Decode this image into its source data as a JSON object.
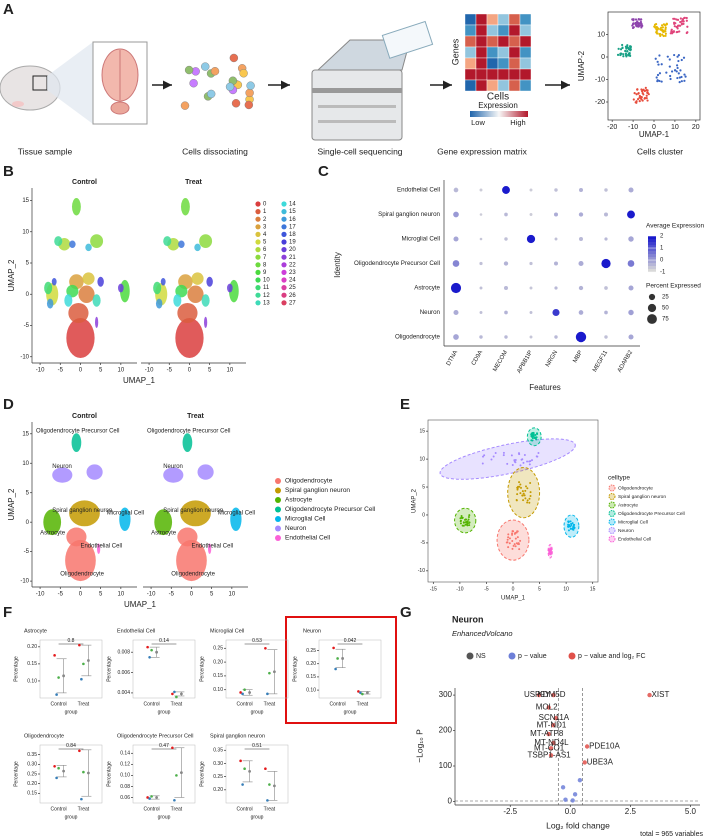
{
  "panel_labels": [
    "A",
    "B",
    "C",
    "D",
    "E",
    "F",
    "G"
  ],
  "a": {
    "steps": [
      "Tissue sample",
      "Cells dissociating",
      "Single-cell sequencing",
      "Gene expression matrix",
      "Cells cluster"
    ],
    "matrix_y": "Genes",
    "matrix_x": "Cells",
    "expression": "Expression",
    "low": "Low",
    "high": "High",
    "umap_x": "UMAP-1",
    "umap_y": "UMAP-2",
    "xlim": [
      -22,
      22
    ],
    "ylim": [
      -28,
      20
    ],
    "xticks": [
      -20,
      -10,
      0,
      10,
      20
    ],
    "yticks": [
      10,
      0,
      -10,
      -20
    ]
  },
  "b": {
    "facets": [
      "Control",
      "Treat"
    ],
    "x_label": "UMAP_1",
    "y_label": "UMAP_2",
    "xlim": [
      -12,
      14
    ],
    "ylim": [
      -11,
      17
    ],
    "xticks": [
      -10,
      -5,
      0,
      5,
      10
    ],
    "yticks": [
      -10,
      -5,
      0,
      5,
      10,
      15
    ],
    "clusters": [
      0,
      1,
      2,
      3,
      4,
      5,
      6,
      7,
      8,
      9,
      10,
      11,
      12,
      13,
      14,
      15,
      16,
      17,
      18,
      19,
      20,
      21,
      22,
      23,
      24,
      25,
      26,
      27
    ]
  },
  "c": {
    "features": [
      "DTNA",
      "CD9A",
      "MECOM",
      "APBB1IP",
      "NRGN",
      "MBP",
      "MEGF11",
      "ADARB2"
    ],
    "x_label": "Features",
    "y_label": "Identity",
    "identities": [
      "Endothelial Cell",
      "Spiral ganglion neuron",
      "Microglial Cell",
      "Oligodendrocyte Precursor Cell",
      "Astrocyte",
      "Neuron",
      "Oligodendrocyte"
    ],
    "avg_expression": [
      [
        -0.5,
        -0.8,
        2,
        -0.8,
        -0.6,
        -0.4,
        -0.6,
        -0.3
      ],
      [
        0,
        -0.8,
        -0.5,
        -0.8,
        -0.3,
        -0.3,
        -0.5,
        2
      ],
      [
        -0.2,
        -0.7,
        -0.6,
        2,
        -0.6,
        -0.5,
        -0.5,
        -0.2
      ],
      [
        0.3,
        -0.6,
        -0.4,
        -0.6,
        -0.4,
        -0.3,
        2,
        0.5
      ],
      [
        2,
        -0.6,
        -0.5,
        -0.7,
        -0.5,
        -0.4,
        -0.6,
        -0.2
      ],
      [
        -0.3,
        -0.6,
        -0.4,
        -0.6,
        1.5,
        -0.3,
        -0.4,
        -0.1
      ],
      [
        -0.2,
        -0.5,
        -0.5,
        -0.7,
        -0.5,
        2,
        -0.6,
        -0.2
      ]
    ],
    "pct_expressed": [
      [
        12,
        3,
        45,
        3,
        5,
        8,
        5,
        15
      ],
      [
        20,
        2,
        6,
        3,
        8,
        10,
        8,
        45
      ],
      [
        15,
        2,
        5,
        50,
        3,
        8,
        4,
        18
      ],
      [
        30,
        4,
        10,
        4,
        8,
        15,
        65,
        30
      ],
      [
        80,
        3,
        8,
        3,
        4,
        10,
        6,
        15
      ],
      [
        15,
        3,
        6,
        3,
        35,
        12,
        6,
        18
      ],
      [
        20,
        5,
        5,
        3,
        5,
        85,
        5,
        15
      ]
    ],
    "color_low": "#d9d9d9",
    "color_high": "#1a1acc",
    "avg_title": "Average Expression",
    "avg_ticks": [
      2,
      1,
      0,
      -1
    ],
    "avg_lim": [
      -1,
      2
    ],
    "pct_title": "Percent Expressed",
    "pct_ticks": [
      25,
      50,
      75
    ]
  },
  "d": {
    "facets": [
      "Control",
      "Treat"
    ],
    "x_label": "UMAP_1",
    "y_label": "UMAP_2",
    "xlim": [
      -12,
      14
    ],
    "ylim": [
      -11,
      17
    ],
    "xticks": [
      -10,
      -5,
      0,
      5,
      10
    ],
    "yticks": [
      -10,
      -5,
      0,
      5,
      10,
      15
    ],
    "celltypes": [
      "Oligodendrocyte",
      "Spiral ganglion neuron",
      "Astrocyte",
      "Oligodendrocyte Precursor Cell",
      "Microglial Cell",
      "Neuron",
      "Endothelial Cell"
    ],
    "colors": [
      "#f8766d",
      "#c49a00",
      "#53b400",
      "#00c094",
      "#00b6eb",
      "#a58aff",
      "#fb61d7"
    ]
  },
  "e": {
    "x_label": "UMAP_1",
    "y_label": "UMAP_2",
    "xlim": [
      -16,
      16
    ],
    "ylim": [
      -12,
      17
    ],
    "xticks": [
      -15,
      -10,
      -5,
      0,
      5,
      10,
      15
    ],
    "yticks": [
      -10,
      -5,
      0,
      5,
      10,
      15
    ],
    "legend_title": "celltype",
    "celltypes": [
      "Oligodendrocyte",
      "Spiral ganglion neuron",
      "Astrocyte",
      "Oligodendrocyte Precursor Cell",
      "Microglial Cell",
      "Neuron",
      "Endothelial Cell"
    ],
    "colors": [
      "#f8766d",
      "#c49a00",
      "#53b400",
      "#00c094",
      "#00b6eb",
      "#a58aff",
      "#fb61d7"
    ]
  },
  "f": {
    "y_label": "Percentage",
    "x_label": "group",
    "groups": [
      "Control",
      "Treat"
    ],
    "point_colors": [
      "#e41a1c",
      "#377eb8",
      "#4daf4a"
    ],
    "plots": [
      {
        "title": "Astrocyte",
        "p": 0.8,
        "ylim": [
          0.05,
          0.22
        ],
        "yticks": [
          {
            "value": 0.1,
            "label": "0.10"
          },
          0.15,
          {
            "value": 0.2,
            "label": "0.20"
          }
        ],
        "control": {
          "points": [
            0.175,
            0.06,
            0.11
          ],
          "mean": 0.115,
          "err": 0.05
        },
        "treat": {
          "points": [
            0.205,
            0.105,
            0.15
          ],
          "mean": 0.16,
          "err": 0.045
        }
      },
      {
        "title": "Endothelial Cell",
        "p": 0.14,
        "ylim": [
          0.0035,
          0.0092
        ],
        "yticks": [
          0.004,
          0.006,
          0.008
        ],
        "control": {
          "points": [
            0.0085,
            0.0075,
            0.0082
          ],
          "mean": 0.008,
          "err": 0.0005
        },
        "treat": {
          "points": [
            0.0039,
            0.0041,
            0.0036
          ],
          "mean": 0.0039,
          "err": 0.0002
        }
      },
      {
        "title": "Microglial Cell",
        "p": 0.53,
        "ylim": [
          0.07,
          0.28
        ],
        "yticks": [
          {
            "value": 0.1,
            "label": "0.10"
          },
          0.15,
          {
            "value": 0.2,
            "label": "0.20"
          },
          0.25
        ],
        "control": {
          "points": [
            0.09,
            0.085,
            0.1
          ],
          "mean": 0.09,
          "err": 0.01
        },
        "treat": {
          "points": [
            0.25,
            0.085,
            0.16
          ],
          "mean": 0.165,
          "err": 0.08
        }
      },
      {
        "title": "Neuron",
        "p": 0.042,
        "ylim": [
          0.07,
          0.29
        ],
        "yticks": [
          {
            "value": 0.1,
            "label": "0.10"
          },
          0.15,
          {
            "value": 0.2,
            "label": "0.20"
          },
          0.25
        ],
        "control": {
          "points": [
            0.26,
            0.18,
            0.22
          ],
          "mean": 0.22,
          "err": 0.035
        },
        "treat": {
          "points": [
            0.095,
            0.09,
            0.085
          ],
          "mean": 0.09,
          "err": 0.005
        }
      },
      {
        "title": "Oligodendrocyte",
        "p": 0.84,
        "ylim": [
          0.1,
          0.4
        ],
        "yticks": [
          0.15,
          {
            "value": 0.2,
            "label": "0.20"
          },
          0.25,
          {
            "value": 0.3,
            "label": "0.30"
          },
          0.35
        ],
        "control": {
          "points": [
            0.29,
            0.23,
            0.28
          ],
          "mean": 0.265,
          "err": 0.03
        },
        "treat": {
          "points": [
            0.37,
            0.12,
            0.26
          ],
          "mean": 0.255,
          "err": 0.12
        }
      },
      {
        "title": "Oligodendrocyte Precursor Cell",
        "p": 0.47,
        "ylim": [
          0.05,
          0.155
        ],
        "yticks": [
          0.06,
          0.08,
          {
            "value": 0.1,
            "label": "0.10"
          },
          0.12,
          0.14
        ],
        "control": {
          "points": [
            0.06,
            0.058,
            0.062
          ],
          "mean": 0.06,
          "err": 0.003
        },
        "treat": {
          "points": [
            0.15,
            0.055,
            0.1
          ],
          "mean": 0.105,
          "err": 0.045
        }
      },
      {
        "title": "Spiral ganglion neuron",
        "p": 0.51,
        "ylim": [
          0.15,
          0.37
        ],
        "yticks": [
          {
            "value": 0.2,
            "label": "0.20"
          },
          0.25,
          {
            "value": 0.3,
            "label": "0.30"
          },
          0.35
        ],
        "control": {
          "points": [
            0.31,
            0.22,
            0.28
          ],
          "mean": 0.27,
          "err": 0.04
        },
        "treat": {
          "points": [
            0.28,
            0.16,
            0.22
          ],
          "mean": 0.215,
          "err": 0.055
        }
      }
    ]
  },
  "g": {
    "title": "Neuron",
    "subtitle": "EnhancedVolcano",
    "legend": [
      "NS",
      "p − value",
      "p − value and log₂ FC"
    ],
    "colors": [
      "#555555",
      "#6d7fd8",
      "#e0504a"
    ],
    "x_label": "Log₂ fold change",
    "y_label": "−Log₁₀ P",
    "caption": "total = 965 variables",
    "xlim": [
      -4.8,
      5.4
    ],
    "ylim": [
      -10,
      320
    ],
    "xticks": [
      -2.5,
      {
        "value": 0,
        "label": "0.0"
      },
      2.5,
      {
        "value": 5,
        "label": "5.0"
      }
    ],
    "yticks": [
      0,
      100,
      200,
      300
    ],
    "fc_cutoffs": [
      -0.5,
      0.5
    ],
    "p_cutoff": 1.3,
    "genes": {
      "x": [
        -1.3,
        -0.7,
        -0.9,
        -0.6,
        -0.7,
        -0.9,
        -0.7,
        -0.8,
        -0.8,
        3.3,
        0.7,
        0.6,
        0.4,
        -0.3,
        0.2,
        -0.2,
        0.1
      ],
      "y": [
        300,
        300,
        265,
        235,
        215,
        190,
        165,
        150,
        130,
        300,
        155,
        110,
        60,
        40,
        20,
        5,
        3
      ],
      "labels": [
        "USP9Y",
        "KDM5D",
        "MOL2",
        "SCN11A",
        "MT-ND1",
        "MT-ATP8",
        "MT-ND4L",
        "MT-CO1",
        "TSBP1-AS1",
        "XIST",
        "PDE10A",
        "UBE3A",
        null,
        null,
        null,
        null,
        null
      ]
    }
  }
}
